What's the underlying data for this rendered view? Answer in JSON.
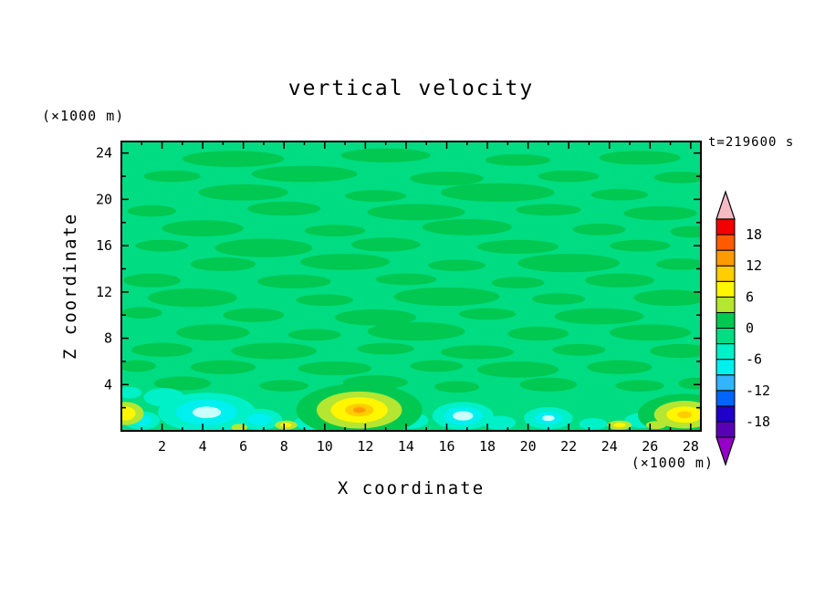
{
  "chart_data": {
    "type": "contour",
    "title": "vertical velocity",
    "xlabel": "X coordinate",
    "ylabel": "Z coordinate",
    "x_axis_unit": "(×1000 m)",
    "y_axis_unit": "(×1000 m)",
    "timestamp": "t=219600 s",
    "xlim": [
      0,
      28.5
    ],
    "ylim": [
      0,
      25
    ],
    "xticks": [
      2,
      4,
      6,
      8,
      10,
      12,
      14,
      16,
      18,
      20,
      22,
      24,
      26,
      28
    ],
    "yticks": [
      4,
      8,
      12,
      16,
      20,
      24
    ],
    "grid": false,
    "legend": "none",
    "colorbar": {
      "position": "right",
      "labels": [
        "18",
        "12",
        "6",
        "0",
        "-6",
        "-12",
        "-18"
      ],
      "label_values": [
        18,
        12,
        6,
        0,
        -6,
        -12,
        -18
      ],
      "levels": [
        -21,
        -18,
        -15,
        -12,
        -9,
        -6,
        -3,
        0,
        3,
        6,
        9,
        12,
        15,
        18,
        21
      ],
      "colors": [
        "#5a00b4",
        "#1e00c8",
        "#0064ff",
        "#32b4ff",
        "#00f0f0",
        "#00f0c8",
        "#00dc82",
        "#00c850",
        "#b4e632",
        "#fff600",
        "#ffcd00",
        "#ff9b00",
        "#ff5a00",
        "#f10000"
      ],
      "over_color": "#f5bac4",
      "under_color": "#9600c8"
    },
    "field": {
      "background_band": 6,
      "streak_band": 7,
      "core_color": "#c8fffa",
      "streaks": [
        [
          5.5,
          23.5,
          2.5,
          0.7
        ],
        [
          13.0,
          23.8,
          2.2,
          0.6
        ],
        [
          19.5,
          23.4,
          1.6,
          0.5
        ],
        [
          25.5,
          23.6,
          2.0,
          0.6
        ],
        [
          2.5,
          22.0,
          1.4,
          0.5
        ],
        [
          9.0,
          22.2,
          2.6,
          0.7
        ],
        [
          16.0,
          21.8,
          1.8,
          0.6
        ],
        [
          22.0,
          22.0,
          1.5,
          0.5
        ],
        [
          27.5,
          21.9,
          1.3,
          0.5
        ],
        [
          6.0,
          20.6,
          2.2,
          0.7
        ],
        [
          12.5,
          20.3,
          1.5,
          0.5
        ],
        [
          18.5,
          20.6,
          2.8,
          0.8
        ],
        [
          24.5,
          20.4,
          1.4,
          0.5
        ],
        [
          1.5,
          19.0,
          1.2,
          0.5
        ],
        [
          8.0,
          19.2,
          1.8,
          0.6
        ],
        [
          14.5,
          18.9,
          2.4,
          0.7
        ],
        [
          21.0,
          19.1,
          1.6,
          0.5
        ],
        [
          26.5,
          18.8,
          1.8,
          0.6
        ],
        [
          4.0,
          17.5,
          2.0,
          0.7
        ],
        [
          10.5,
          17.3,
          1.5,
          0.5
        ],
        [
          17.0,
          17.6,
          2.2,
          0.7
        ],
        [
          23.5,
          17.4,
          1.3,
          0.5
        ],
        [
          28.0,
          17.2,
          1.0,
          0.5
        ],
        [
          2.0,
          16.0,
          1.3,
          0.5
        ],
        [
          7.0,
          15.8,
          2.4,
          0.8
        ],
        [
          13.0,
          16.1,
          1.7,
          0.6
        ],
        [
          19.5,
          15.9,
          2.0,
          0.6
        ],
        [
          25.5,
          16.0,
          1.5,
          0.5
        ],
        [
          5.0,
          14.4,
          1.6,
          0.6
        ],
        [
          11.0,
          14.6,
          2.2,
          0.7
        ],
        [
          16.5,
          14.3,
          1.4,
          0.5
        ],
        [
          22.0,
          14.5,
          2.5,
          0.8
        ],
        [
          27.5,
          14.4,
          1.2,
          0.5
        ],
        [
          1.5,
          13.0,
          1.4,
          0.6
        ],
        [
          8.5,
          12.9,
          1.8,
          0.6
        ],
        [
          14.0,
          13.1,
          1.5,
          0.5
        ],
        [
          19.5,
          12.8,
          1.3,
          0.5
        ],
        [
          24.5,
          13.0,
          1.7,
          0.6
        ],
        [
          3.5,
          11.5,
          2.2,
          0.8
        ],
        [
          10.0,
          11.3,
          1.4,
          0.5
        ],
        [
          16.0,
          11.6,
          2.6,
          0.8
        ],
        [
          21.5,
          11.4,
          1.3,
          0.5
        ],
        [
          27.0,
          11.5,
          1.8,
          0.7
        ],
        [
          1.0,
          10.2,
          1.0,
          0.5
        ],
        [
          6.5,
          10.0,
          1.5,
          0.6
        ],
        [
          12.5,
          9.8,
          2.0,
          0.7
        ],
        [
          18.0,
          10.1,
          1.4,
          0.5
        ],
        [
          23.5,
          9.9,
          2.2,
          0.7
        ],
        [
          4.5,
          8.5,
          1.8,
          0.7
        ],
        [
          9.5,
          8.3,
          1.3,
          0.5
        ],
        [
          14.5,
          8.6,
          2.4,
          0.8
        ],
        [
          20.5,
          8.4,
          1.5,
          0.6
        ],
        [
          26.0,
          8.5,
          2.0,
          0.7
        ],
        [
          2.0,
          7.0,
          1.5,
          0.6
        ],
        [
          7.5,
          6.9,
          2.1,
          0.7
        ],
        [
          13.0,
          7.1,
          1.4,
          0.5
        ],
        [
          17.5,
          6.8,
          1.8,
          0.6
        ],
        [
          22.5,
          7.0,
          1.3,
          0.5
        ],
        [
          27.5,
          6.9,
          1.5,
          0.6
        ],
        [
          0.8,
          5.6,
          0.9,
          0.5
        ],
        [
          5.0,
          5.5,
          1.6,
          0.6
        ],
        [
          10.5,
          5.4,
          1.8,
          0.6
        ],
        [
          15.5,
          5.6,
          1.3,
          0.5
        ],
        [
          19.5,
          5.3,
          2.0,
          0.7
        ],
        [
          24.5,
          5.5,
          1.6,
          0.6
        ],
        [
          3.0,
          4.1,
          1.4,
          0.6
        ],
        [
          8.0,
          3.9,
          1.2,
          0.5
        ],
        [
          12.5,
          4.2,
          1.6,
          0.6
        ],
        [
          16.5,
          3.8,
          1.1,
          0.5
        ],
        [
          21.0,
          4.0,
          1.4,
          0.6
        ],
        [
          25.5,
          3.9,
          1.2,
          0.5
        ],
        [
          28.2,
          4.1,
          0.8,
          0.5
        ]
      ],
      "features": [
        {
          "x": 4.2,
          "z": 1.6,
          "rings": [
            {
              "band": 5,
              "rx": 2.4,
              "rz": 1.7
            },
            {
              "band": 4,
              "rx": 1.5,
              "rz": 1.1
            },
            {
              "core": true,
              "rx": 0.7,
              "rz": 0.5
            }
          ]
        },
        {
          "x": 2.1,
          "z": 2.9,
          "rings": [
            {
              "band": 5,
              "rx": 1.0,
              "rz": 0.8
            }
          ]
        },
        {
          "x": 1.0,
          "z": 0.9,
          "rings": [
            {
              "band": 5,
              "rx": 0.9,
              "rz": 0.8
            },
            {
              "band": 4,
              "rx": 0.5,
              "rz": 0.45
            }
          ]
        },
        {
          "x": 6.8,
          "z": 1.0,
          "rings": [
            {
              "band": 5,
              "rx": 1.1,
              "rz": 0.9
            },
            {
              "band": 4,
              "rx": 0.6,
              "rz": 0.5
            }
          ]
        },
        {
          "x": 9.3,
          "z": 0.7,
          "rings": [
            {
              "band": 5,
              "rx": 0.8,
              "rz": 0.6
            }
          ]
        },
        {
          "x": 14.2,
          "z": 0.9,
          "rings": [
            {
              "band": 5,
              "rx": 0.9,
              "rz": 0.7
            }
          ]
        },
        {
          "x": 16.8,
          "z": 1.3,
          "rings": [
            {
              "band": 5,
              "rx": 1.5,
              "rz": 1.2
            },
            {
              "band": 4,
              "rx": 0.95,
              "rz": 0.8
            },
            {
              "core": true,
              "rx": 0.5,
              "rz": 0.4
            }
          ]
        },
        {
          "x": 18.6,
          "z": 0.7,
          "rings": [
            {
              "band": 5,
              "rx": 0.8,
              "rz": 0.6
            }
          ]
        },
        {
          "x": 21.0,
          "z": 1.1,
          "rings": [
            {
              "band": 5,
              "rx": 1.2,
              "rz": 0.95
            },
            {
              "band": 4,
              "rx": 0.7,
              "rz": 0.55
            },
            {
              "core": true,
              "rx": 0.3,
              "rz": 0.25
            }
          ]
        },
        {
          "x": 23.2,
          "z": 0.6,
          "rings": [
            {
              "band": 5,
              "rx": 0.7,
              "rz": 0.5
            }
          ]
        },
        {
          "x": 25.6,
          "z": 0.9,
          "rings": [
            {
              "band": 5,
              "rx": 0.85,
              "rz": 0.65
            }
          ]
        },
        {
          "x": 0.4,
          "z": 3.3,
          "rings": [
            {
              "band": 5,
              "rx": 0.6,
              "rz": 0.5
            }
          ]
        },
        {
          "x": 11.7,
          "z": 1.8,
          "rings": [
            {
              "band": 7,
              "rx": 3.1,
              "rz": 2.3
            },
            {
              "band": 8,
              "rx": 2.1,
              "rz": 1.6
            },
            {
              "band": 9,
              "rx": 1.4,
              "rz": 1.1
            },
            {
              "band": 10,
              "rx": 0.7,
              "rz": 0.55
            },
            {
              "band": 11,
              "rx": 0.3,
              "rz": 0.25
            }
          ]
        },
        {
          "x": 27.7,
          "z": 1.4,
          "rings": [
            {
              "band": 7,
              "rx": 2.3,
              "rz": 1.8
            },
            {
              "band": 8,
              "rx": 1.5,
              "rz": 1.2
            },
            {
              "band": 9,
              "rx": 0.9,
              "rz": 0.7
            },
            {
              "band": 10,
              "rx": 0.35,
              "rz": 0.3
            }
          ]
        },
        {
          "x": 0.2,
          "z": 1.5,
          "rings": [
            {
              "band": 8,
              "rx": 0.9,
              "rz": 1.0
            },
            {
              "band": 9,
              "rx": 0.5,
              "rz": 0.6
            }
          ]
        },
        {
          "x": 24.5,
          "z": 0.5,
          "rings": [
            {
              "band": 8,
              "rx": 0.6,
              "rz": 0.4
            },
            {
              "band": 9,
              "rx": 0.3,
              "rz": 0.2
            }
          ]
        },
        {
          "x": 8.1,
          "z": 0.5,
          "rings": [
            {
              "band": 8,
              "rx": 0.55,
              "rz": 0.4
            },
            {
              "band": 9,
              "rx": 0.28,
              "rz": 0.2
            }
          ]
        },
        {
          "x": 5.8,
          "z": 0.3,
          "rings": [
            {
              "band": 8,
              "rx": 0.4,
              "rz": 0.3
            }
          ]
        },
        {
          "x": 26.3,
          "z": 0.5,
          "rings": [
            {
              "band": 8,
              "rx": 0.5,
              "rz": 0.35
            }
          ]
        }
      ]
    }
  }
}
